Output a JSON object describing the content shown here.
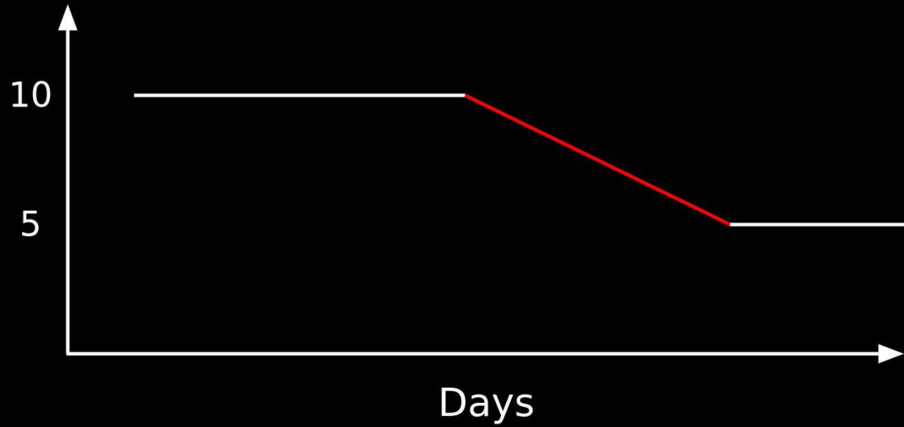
{
  "chart_data": {
    "type": "line",
    "xlabel": "Days",
    "ylabel": "",
    "ylim": [
      0,
      10
    ],
    "y_ticks": [
      {
        "value": 10,
        "label": "10"
      },
      {
        "value": 5,
        "label": "5"
      }
    ],
    "grid": false,
    "segments": [
      {
        "x": [
          0.25,
          1.5
        ],
        "y": [
          10,
          10
        ],
        "color": "#ffffff"
      },
      {
        "x": [
          1.5,
          2.5
        ],
        "y": [
          10,
          5
        ],
        "color": "#ff0000"
      },
      {
        "x": [
          2.5,
          3.75
        ],
        "y": [
          5,
          5
        ],
        "color": "#ffffff"
      }
    ],
    "colors": {
      "background": "#000000",
      "axis": "#ffffff",
      "line": "#ffffff",
      "highlight": "#ff0000"
    }
  }
}
